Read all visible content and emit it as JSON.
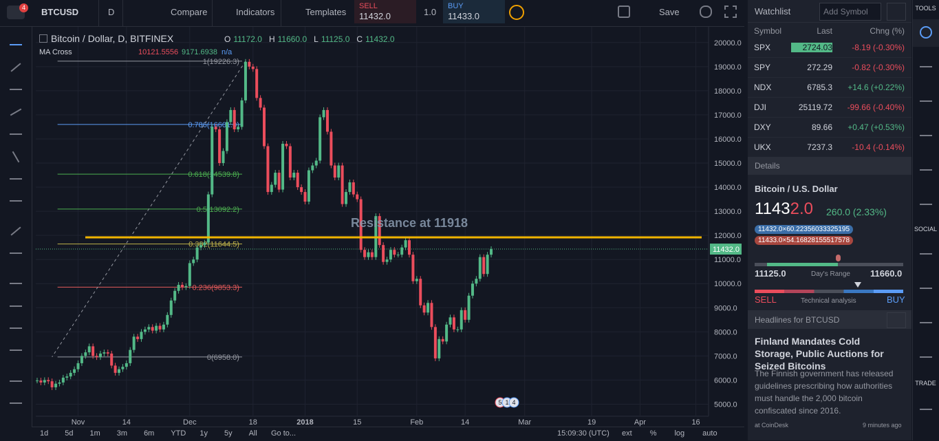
{
  "toolbar": {
    "symbol": "BTCUSD",
    "interval": "D",
    "compare": "Compare",
    "indicators": "Indicators",
    "templates": "Templates",
    "sell_label": "SELL",
    "sell_price": "11432.0",
    "spread": "1.0",
    "buy_label": "BUY",
    "buy_price": "11433.0",
    "save": "Save"
  },
  "chart": {
    "type": "candlestick",
    "title": "Bitcoin / Dollar, D, BITFINEX",
    "ohlc": [
      {
        "key": "O",
        "value": "11172.0"
      },
      {
        "key": "H",
        "value": "11660.0"
      },
      {
        "key": "L",
        "value": "11125.0"
      },
      {
        "key": "C",
        "value": "11432.0"
      }
    ],
    "indicator": {
      "name": "MA Cross",
      "values": [
        "10121.5556",
        "9171.6938",
        "n/a"
      ]
    },
    "up_color": "#53b987",
    "down_color": "#eb4d5c",
    "categories": [
      null,
      null,
      null,
      null,
      null,
      null,
      null,
      null,
      null,
      null,
      null,
      "Nov",
      null,
      null,
      null,
      null,
      null,
      null,
      null,
      null,
      null,
      null,
      null,
      null,
      "14",
      null,
      null,
      null,
      null,
      null,
      null,
      null,
      null,
      null,
      null,
      null,
      null,
      null,
      null,
      null,
      null,
      "Dec",
      null,
      null,
      null,
      null,
      null,
      null,
      null,
      null,
      null,
      null,
      null,
      null,
      null,
      null,
      null,
      null,
      "18",
      null,
      null,
      null,
      null,
      null,
      null,
      null,
      null,
      null,
      null,
      null,
      null,
      null,
      "2018",
      null,
      null,
      null,
      null,
      null,
      null,
      null,
      null,
      null,
      null,
      null,
      null,
      null,
      "15",
      null,
      null,
      null,
      null,
      null,
      null,
      null,
      null,
      null,
      null,
      null,
      null,
      null,
      null,
      null,
      "Feb",
      null,
      null,
      null,
      null,
      null,
      null,
      null,
      null,
      null,
      null,
      null,
      null,
      "14",
      null,
      null,
      null,
      null,
      null,
      null,
      null,
      null,
      null,
      null,
      null,
      null,
      null,
      null,
      null,
      "Mar",
      null,
      null,
      null,
      null,
      null,
      null,
      null,
      null,
      null,
      null,
      null,
      null,
      null,
      null,
      null,
      null,
      null,
      "19",
      null,
      null,
      null,
      null,
      null,
      null,
      null,
      null,
      null,
      null,
      null,
      null,
      "Apr",
      null,
      null,
      null,
      null,
      null,
      null,
      null,
      null,
      null,
      null,
      null,
      null,
      null,
      null,
      "16"
    ],
    "candles": {
      "values": [
        5980,
        5900,
        6000,
        5950,
        5700,
        5850,
        5900,
        6100,
        6150,
        6300,
        6450,
        6700,
        7000,
        7150,
        7400,
        7000,
        6950,
        7100,
        7150,
        7100,
        6600,
        6300,
        6450,
        6550,
        6700,
        7250,
        7800,
        7700,
        8000,
        8100,
        8200,
        8050,
        8250,
        8100,
        8300,
        8700,
        9300,
        9700,
        9950,
        9850,
        9900,
        10850,
        11000,
        11500,
        11600,
        11700,
        13700,
        16500,
        16400,
        15000,
        15500,
        16700,
        17200,
        16400,
        16500,
        17600,
        19200,
        19000,
        18900,
        17700,
        17300,
        15700,
        13800,
        14100,
        14600,
        13900,
        15800,
        15700,
        14400,
        14600,
        14000,
        13800,
        13400,
        14700,
        14900,
        15100,
        16900,
        17200,
        16300,
        14900,
        14400,
        14900,
        13300,
        13800,
        14200,
        13700,
        13500,
        11400,
        11100,
        11300,
        11100,
        12800,
        11600,
        10900,
        11000,
        11400,
        11200,
        11200,
        11500,
        11800,
        11200,
        10100,
        10200,
        9100,
        8800,
        9200,
        8200,
        6900,
        7700,
        7600,
        8300,
        8600,
        8100,
        8100,
        8900,
        8500,
        9500,
        10000,
        10200,
        11100,
        10400,
        11200,
        11432,
        null,
        null,
        null,
        null,
        null,
        null,
        null,
        null,
        null,
        null,
        null,
        null,
        null,
        null,
        null,
        null,
        null,
        null,
        null,
        null,
        null,
        null,
        null,
        null,
        null,
        null,
        null,
        null,
        null,
        null,
        null,
        null,
        null,
        null,
        null,
        null,
        null,
        null,
        null,
        null,
        null,
        null,
        null,
        null,
        null,
        null,
        null,
        null,
        null,
        null,
        null,
        null,
        null,
        null,
        null
      ]
    },
    "ylim": [
      4500,
      20650
    ],
    "yticks": [
      {
        "value": 5000,
        "label": "5000.0"
      },
      {
        "value": 6000,
        "label": "6000.0"
      },
      {
        "value": 7000,
        "label": "7000.0"
      },
      {
        "value": 8000,
        "label": "8000.0"
      },
      {
        "value": 9000,
        "label": "9000.0"
      },
      {
        "value": 10000,
        "label": "10000.0"
      },
      {
        "value": 11000,
        "label": "11000.0"
      },
      {
        "value": 12000,
        "label": "12000.0"
      },
      {
        "value": 13000,
        "label": "13000.0"
      },
      {
        "value": 14000,
        "label": "14000.0"
      },
      {
        "value": 15000,
        "label": "15000.0"
      },
      {
        "value": 16000,
        "label": "16000.0"
      },
      {
        "value": 17000,
        "label": "17000.0"
      },
      {
        "value": 18000,
        "label": "18000.0"
      },
      {
        "value": 19000,
        "label": "19000.0"
      },
      {
        "value": 20000,
        "label": "20000.0"
      }
    ],
    "fib_levels": [
      {
        "label": "1(19226.3)",
        "value": 19226.3,
        "color": "#9598a1",
        "fill": "#2e3039"
      },
      {
        "label": "0.786(16601.0)",
        "value": 16601.0,
        "color": "#5b9cf6",
        "fill": "#1d3550"
      },
      {
        "label": "0.618(14539.8)",
        "value": 14539.8,
        "color": "#4caf50",
        "fill": "#1d3c3b"
      },
      {
        "label": "0.5(13092.2)",
        "value": 13092.2,
        "color": "#4caf50",
        "fill": "#233d2b"
      },
      {
        "label": "0.382(11644.5)",
        "value": 11644.5,
        "color": "#c0b34a",
        "fill": "#353b22"
      },
      {
        "label": "0.236(9853.3)",
        "value": 9853.3,
        "color": "#e55b5b",
        "fill": "#3f2328"
      },
      {
        "label": "0(6958.0)",
        "value": 6958.0,
        "color": "#9598a1",
        "fill": null
      }
    ],
    "resistance": {
      "label": "Resistance at 11918",
      "value": 11918,
      "color": "#f0b400"
    },
    "last_price": {
      "value": 11432,
      "label": "11432.0",
      "color": "#53b987"
    },
    "events": [
      "5",
      "1",
      "4"
    ]
  },
  "timebar": {
    "ranges": [
      "1d",
      "5d",
      "1m",
      "3m",
      "6m",
      "YTD",
      "1y",
      "5y",
      "All"
    ],
    "goto": "Go to...",
    "clock": "15:09:30 (UTC)",
    "options": [
      "ext",
      "%",
      "log",
      "auto"
    ]
  },
  "right_bar": {
    "sections": [
      "TOOLS",
      "SOCIAL",
      "TRADE"
    ]
  },
  "watchlist": {
    "title": "Watchlist",
    "add_placeholder": "Add Symbol",
    "columns": [
      "Symbol",
      "Last",
      "Chng (%)"
    ],
    "rows": [
      [
        "SPX",
        "2724.03",
        "-8.19 (-0.30%)"
      ],
      [
        "SPY",
        "272.29",
        "-0.82 (-0.30%)"
      ],
      [
        "NDX",
        "6785.3",
        "+14.6 (+0.22%)"
      ],
      [
        "DJI",
        "25119.72",
        "-99.66 (-0.40%)"
      ],
      [
        "DXY",
        "89.66",
        "+0.47 (+0.53%)"
      ],
      [
        "UKX",
        "7237.3",
        "-10.4 (-0.14%)"
      ]
    ]
  },
  "details": {
    "header": "Details",
    "name": "Bitcoin / U.S. Dollar",
    "price_lead": "1143",
    "price_tail": "2.0",
    "change": "260.0 (2.33%)",
    "bid": "11432.0×60.22356033325195",
    "ask": "11433.0×54.16828155517578",
    "low": "11125.0",
    "range_label": "Day's Range",
    "high": "11660.0",
    "sell": "SELL",
    "analysis": "Technical analysis",
    "buy": "BUY"
  },
  "headlines": {
    "header": "Headlines for BTCUSD",
    "title": "Finland Mandates Cold Storage, Public Auctions for Seized Bitcoins",
    "body": "The Finnish government has released guidelines prescribing how authorities must handle the 2,000 bitcoin confiscated since 2016.",
    "source": "at CoinDesk",
    "time": "9 minutes ago"
  }
}
